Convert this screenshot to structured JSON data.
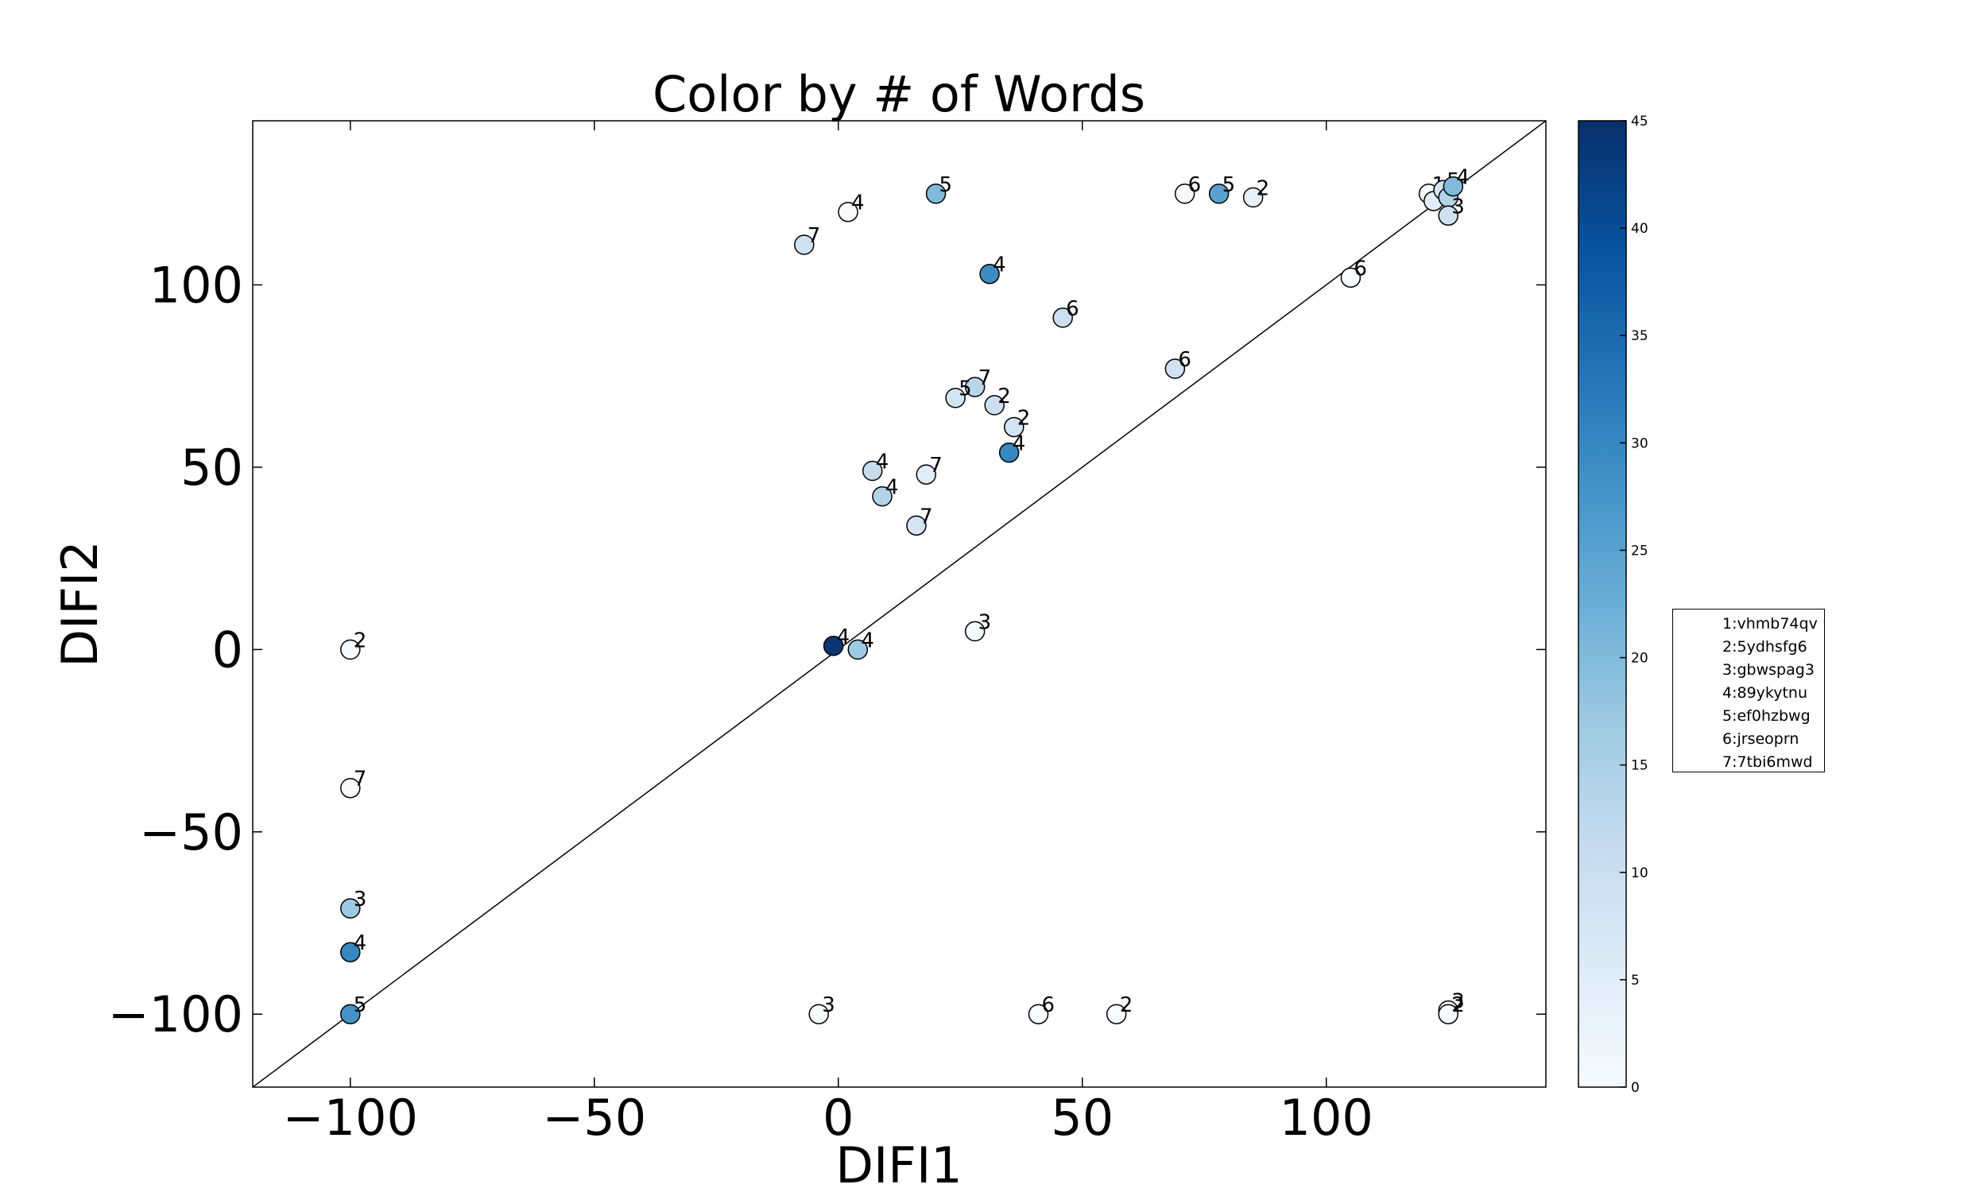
{
  "chart_data": {
    "type": "scatter",
    "title": "Color by # of Words",
    "xlabel": "DIFI1",
    "ylabel": "DIFI2",
    "xlim": [
      -120,
      145
    ],
    "ylim": [
      -120,
      145
    ],
    "xticks": [
      -100,
      -50,
      0,
      50,
      100
    ],
    "yticks": [
      -100,
      -50,
      0,
      50,
      100
    ],
    "xtick_labels": [
      "−100",
      "−50",
      "0",
      "50",
      "100"
    ],
    "ytick_labels": [
      "−100",
      "−50",
      "0",
      "50",
      "100"
    ],
    "grid": false,
    "reference_line": "y = x",
    "colormap": "Blues",
    "colorbar": {
      "min": 0,
      "max": 45,
      "ticks": [
        0,
        5,
        10,
        15,
        20,
        25,
        30,
        35,
        40,
        45
      ],
      "tick_labels": [
        "0",
        "5",
        "10",
        "15",
        "20",
        "25",
        "30",
        "35",
        "40",
        "45"
      ]
    },
    "points": [
      {
        "x": -1,
        "y": 1,
        "label": "4",
        "color": 44
      },
      {
        "x": 4,
        "y": 0,
        "label": "4",
        "color": 17
      },
      {
        "x": 28,
        "y": 5,
        "label": "3",
        "color": 0
      },
      {
        "x": -100,
        "y": 0,
        "label": "2",
        "color": 0
      },
      {
        "x": -100,
        "y": -38,
        "label": "7",
        "color": 0
      },
      {
        "x": -100,
        "y": -71,
        "label": "3",
        "color": 17
      },
      {
        "x": -100,
        "y": -83,
        "label": "4",
        "color": 30
      },
      {
        "x": -100,
        "y": -100,
        "label": "5",
        "color": 28
      },
      {
        "x": -4,
        "y": -100,
        "label": "3",
        "color": 0
      },
      {
        "x": 41,
        "y": -100,
        "label": "6",
        "color": 0
      },
      {
        "x": 57,
        "y": -100,
        "label": "2",
        "color": 0
      },
      {
        "x": 125,
        "y": -99,
        "label": "3",
        "color": 0
      },
      {
        "x": 125,
        "y": -100,
        "label": "2",
        "color": 0
      },
      {
        "x": 2,
        "y": 120,
        "label": "4",
        "color": 0
      },
      {
        "x": -7,
        "y": 111,
        "label": "7",
        "color": 9
      },
      {
        "x": 20,
        "y": 125,
        "label": "5",
        "color": 20
      },
      {
        "x": 31,
        "y": 103,
        "label": "4",
        "color": 29
      },
      {
        "x": 46,
        "y": 91,
        "label": "6",
        "color": 10
      },
      {
        "x": 71,
        "y": 125,
        "label": "6",
        "color": 0
      },
      {
        "x": 78,
        "y": 125,
        "label": "5",
        "color": 25
      },
      {
        "x": 85,
        "y": 124,
        "label": "2",
        "color": 4
      },
      {
        "x": 105,
        "y": 102,
        "label": "6",
        "color": 0
      },
      {
        "x": 69,
        "y": 77,
        "label": "6",
        "color": 9
      },
      {
        "x": 28,
        "y": 72,
        "label": "7",
        "color": 13
      },
      {
        "x": 24,
        "y": 69,
        "label": "5",
        "color": 8
      },
      {
        "x": 32,
        "y": 67,
        "label": "2",
        "color": 10
      },
      {
        "x": 36,
        "y": 61,
        "label": "2",
        "color": 8
      },
      {
        "x": 35,
        "y": 54,
        "label": "4",
        "color": 30
      },
      {
        "x": 7,
        "y": 49,
        "label": "4",
        "color": 11
      },
      {
        "x": 9,
        "y": 42,
        "label": "4",
        "color": 14
      },
      {
        "x": 18,
        "y": 48,
        "label": "7",
        "color": 5
      },
      {
        "x": 16,
        "y": 34,
        "label": "7",
        "color": 8
      },
      {
        "x": 121,
        "y": 125,
        "label": "1",
        "color": 0
      },
      {
        "x": 122,
        "y": 123,
        "label": "6",
        "color": 5
      },
      {
        "x": 124,
        "y": 126,
        "label": "5",
        "color": 8
      },
      {
        "x": 125,
        "y": 124,
        "label": "7",
        "color": 14
      },
      {
        "x": 126,
        "y": 127,
        "label": "4",
        "color": 20
      },
      {
        "x": 125,
        "y": 119,
        "label": "3",
        "color": 9
      }
    ],
    "legend": {
      "placement": "right",
      "entries": [
        "1:vhmb74qv",
        "2:5ydhsfg6",
        "3:gbwspag3",
        "4:89ykytnu",
        "5:ef0hzbwg",
        "6:jrseoprn",
        "7:7tbi6mwd"
      ]
    }
  }
}
